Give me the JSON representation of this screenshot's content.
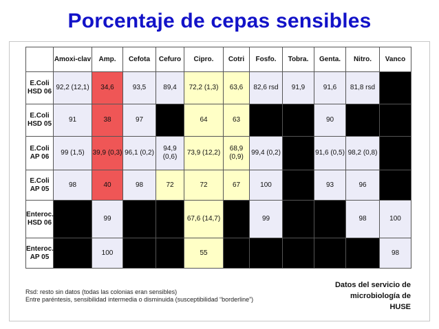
{
  "slide": {
    "title": "Porcentaje de cepas sensibles",
    "colors": {
      "title": "#1212c8",
      "cell_light": "#ececf8",
      "cell_red": "#ef5656",
      "cell_yellow": "#ffffc6",
      "cell_black": "#000000"
    },
    "table": {
      "columns": [
        "",
        "Amoxi-clav",
        "Amp.",
        "Cefota",
        "Cefuro",
        "Cipro.",
        "Cotri",
        "Fosfo.",
        "Tobra.",
        "Genta.",
        "Nitro.",
        "Vanco"
      ],
      "rows": [
        {
          "label": "E.Coli HSD 06",
          "cells": [
            {
              "v": "92,2 (12,1)",
              "c": "l"
            },
            {
              "v": "34,6",
              "c": "r"
            },
            {
              "v": "93,5",
              "c": "l"
            },
            {
              "v": "89,4",
              "c": "l"
            },
            {
              "v": "72,2 (1,3)",
              "c": "y"
            },
            {
              "v": "63,6",
              "c": "y"
            },
            {
              "v": "82,6 rsd",
              "c": "l"
            },
            {
              "v": "91,9",
              "c": "l"
            },
            {
              "v": "91,6",
              "c": "l"
            },
            {
              "v": "81,8 rsd",
              "c": "l"
            },
            {
              "v": "",
              "c": "b"
            }
          ]
        },
        {
          "label": "E.Coli HSD 05",
          "cells": [
            {
              "v": "91",
              "c": "l"
            },
            {
              "v": "38",
              "c": "r"
            },
            {
              "v": "97",
              "c": "l"
            },
            {
              "v": "",
              "c": "b"
            },
            {
              "v": "64",
              "c": "y"
            },
            {
              "v": "63",
              "c": "y"
            },
            {
              "v": "",
              "c": "b"
            },
            {
              "v": "",
              "c": "b"
            },
            {
              "v": "90",
              "c": "l"
            },
            {
              "v": "",
              "c": "b"
            },
            {
              "v": "",
              "c": "b"
            }
          ]
        },
        {
          "label": "E.Coli AP 06",
          "cells": [
            {
              "v": "99 (1,5)",
              "c": "l"
            },
            {
              "v": "39,9 (0,3)",
              "c": "r"
            },
            {
              "v": "96,1 (0,2)",
              "c": "l"
            },
            {
              "v": "94,9 (0,6)",
              "c": "l"
            },
            {
              "v": "73,9 (12,2)",
              "c": "y"
            },
            {
              "v": "68,9 (0,9)",
              "c": "y"
            },
            {
              "v": "99,4 (0,2)",
              "c": "l"
            },
            {
              "v": "",
              "c": "b"
            },
            {
              "v": "91,6 (0,5)",
              "c": "l"
            },
            {
              "v": "98,2 (0,8)",
              "c": "l"
            },
            {
              "v": "",
              "c": "b"
            }
          ]
        },
        {
          "label": "E.Coli AP 05",
          "cells": [
            {
              "v": "98",
              "c": "l"
            },
            {
              "v": "40",
              "c": "r"
            },
            {
              "v": "98",
              "c": "l"
            },
            {
              "v": "72",
              "c": "y"
            },
            {
              "v": "72",
              "c": "y"
            },
            {
              "v": "67",
              "c": "y"
            },
            {
              "v": "100",
              "c": "l"
            },
            {
              "v": "",
              "c": "b"
            },
            {
              "v": "93",
              "c": "l"
            },
            {
              "v": "96",
              "c": "l"
            },
            {
              "v": "",
              "c": "b"
            }
          ]
        },
        {
          "label": "Enteroc. HSD 06",
          "cells": [
            {
              "v": "",
              "c": "b"
            },
            {
              "v": "99",
              "c": "l"
            },
            {
              "v": "",
              "c": "b"
            },
            {
              "v": "",
              "c": "b"
            },
            {
              "v": "67,6 (14,7)",
              "c": "y"
            },
            {
              "v": "",
              "c": "b"
            },
            {
              "v": "99",
              "c": "l"
            },
            {
              "v": "",
              "c": "b"
            },
            {
              "v": "",
              "c": "b"
            },
            {
              "v": "98",
              "c": "l"
            },
            {
              "v": "100",
              "c": "l"
            }
          ]
        },
        {
          "label": "Enteroc. AP 05",
          "cells": [
            {
              "v": "",
              "c": "b"
            },
            {
              "v": "100",
              "c": "l"
            },
            {
              "v": "",
              "c": "b"
            },
            {
              "v": "",
              "c": "b"
            },
            {
              "v": "55",
              "c": "y"
            },
            {
              "v": "",
              "c": "b"
            },
            {
              "v": "",
              "c": "b"
            },
            {
              "v": "",
              "c": "b"
            },
            {
              "v": "",
              "c": "b"
            },
            {
              "v": "",
              "c": "b"
            },
            {
              "v": "98",
              "c": "l"
            }
          ]
        }
      ]
    },
    "footnote": {
      "line1": "Rsd: resto sin datos (todas las colonias eran sensibles)",
      "line2": "Entre paréntesis, sensibilidad intermedia o disminuida (susceptibilidad “borderline”)"
    },
    "source": {
      "line1": "Datos del servicio de",
      "line2": "microbiología de",
      "line3": "HUSE"
    }
  }
}
